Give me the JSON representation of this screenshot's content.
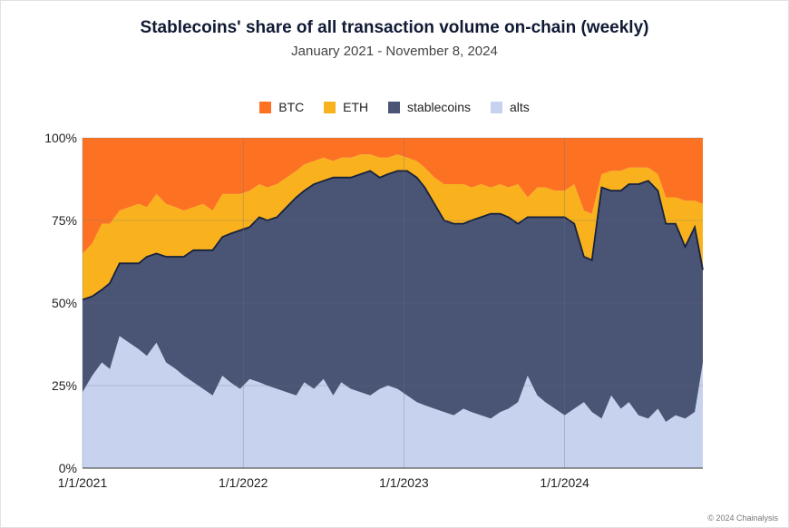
{
  "chart_data": {
    "type": "area",
    "stacked": true,
    "title": "Stablecoins' share of all transaction volume on-chain (weekly)",
    "subtitle": "January 2021 - November 8, 2024",
    "xlabel": "",
    "ylabel": "",
    "ylim": [
      0,
      100
    ],
    "yticks": [
      "0%",
      "25%",
      "50%",
      "75%",
      "100%"
    ],
    "yticks_values": [
      0,
      25,
      50,
      75,
      100
    ],
    "xlim": [
      2021.0,
      2024.86
    ],
    "xticks": [
      "1/1/2021",
      "1/1/2022",
      "1/1/2023",
      "1/1/2024"
    ],
    "xticks_values": [
      2021.0,
      2022.0,
      2023.0,
      2024.0
    ],
    "grid": true,
    "legend_position": "top-center",
    "copyright": "© 2024 Chainalysis",
    "x": [
      2021.0,
      2021.06,
      2021.12,
      2021.17,
      2021.23,
      2021.29,
      2021.35,
      2021.4,
      2021.46,
      2021.52,
      2021.58,
      2021.63,
      2021.69,
      2021.75,
      2021.81,
      2021.87,
      2021.92,
      2021.98,
      2022.04,
      2022.1,
      2022.15,
      2022.21,
      2022.27,
      2022.33,
      2022.38,
      2022.44,
      2022.5,
      2022.56,
      2022.61,
      2022.67,
      2022.73,
      2022.79,
      2022.85,
      2022.9,
      2022.96,
      2023.02,
      2023.08,
      2023.13,
      2023.19,
      2023.25,
      2023.31,
      2023.37,
      2023.42,
      2023.48,
      2023.54,
      2023.6,
      2023.65,
      2023.71,
      2023.77,
      2023.83,
      2023.88,
      2023.94,
      2024.0,
      2024.06,
      2024.12,
      2024.17,
      2024.23,
      2024.29,
      2024.35,
      2024.4,
      2024.46,
      2024.52,
      2024.58,
      2024.63,
      2024.69,
      2024.75,
      2024.81,
      2024.86
    ],
    "series": [
      {
        "name": "alts",
        "color": "#c7d3ee",
        "values": [
          23,
          28,
          32,
          30,
          40,
          38,
          36,
          34,
          38,
          32,
          30,
          28,
          26,
          24,
          22,
          28,
          26,
          24,
          27,
          26,
          25,
          24,
          23,
          22,
          26,
          24,
          27,
          22,
          26,
          24,
          23,
          22,
          24,
          25,
          24,
          22,
          20,
          19,
          18,
          17,
          16,
          18,
          17,
          16,
          15,
          17,
          18,
          20,
          28,
          22,
          20,
          18,
          16,
          18,
          20,
          17,
          15,
          22,
          18,
          20,
          16,
          15,
          18,
          14,
          16,
          15,
          17,
          32
        ]
      },
      {
        "name": "stablecoins",
        "color": "#4a5474",
        "values": [
          28,
          24,
          22,
          26,
          22,
          24,
          26,
          30,
          27,
          32,
          34,
          36,
          40,
          42,
          44,
          42,
          45,
          48,
          46,
          50,
          50,
          52,
          56,
          60,
          58,
          62,
          60,
          66,
          62,
          64,
          66,
          68,
          64,
          64,
          66,
          68,
          68,
          66,
          62,
          58,
          58,
          56,
          58,
          60,
          62,
          60,
          58,
          54,
          48,
          54,
          56,
          58,
          60,
          56,
          44,
          46,
          70,
          62,
          66,
          66,
          70,
          72,
          66,
          60,
          58,
          52,
          56,
          28
        ]
      },
      {
        "name": "ETH",
        "color": "#f9b21d",
        "values": [
          14,
          16,
          20,
          18,
          16,
          17,
          18,
          15,
          18,
          16,
          15,
          14,
          13,
          14,
          12,
          13,
          12,
          11,
          11,
          10,
          10,
          10,
          9,
          8,
          8,
          7,
          7,
          5,
          6,
          6,
          6,
          5,
          6,
          5,
          5,
          4,
          5,
          6,
          8,
          11,
          12,
          12,
          10,
          10,
          8,
          9,
          9,
          12,
          6,
          9,
          9,
          8,
          8,
          12,
          14,
          14,
          4,
          6,
          6,
          5,
          5,
          4,
          5,
          8,
          8,
          14,
          8,
          20
        ]
      },
      {
        "name": "BTC",
        "color": "#fc7222",
        "values": [
          35,
          32,
          26,
          26,
          22,
          21,
          20,
          21,
          17,
          20,
          21,
          22,
          21,
          20,
          22,
          17,
          17,
          17,
          16,
          14,
          15,
          14,
          12,
          10,
          8,
          7,
          6,
          7,
          6,
          6,
          5,
          5,
          6,
          6,
          5,
          6,
          7,
          9,
          12,
          14,
          14,
          14,
          15,
          14,
          15,
          14,
          15,
          14,
          18,
          15,
          15,
          16,
          16,
          14,
          22,
          23,
          11,
          10,
          10,
          9,
          9,
          9,
          11,
          18,
          18,
          19,
          19,
          20
        ]
      }
    ]
  }
}
